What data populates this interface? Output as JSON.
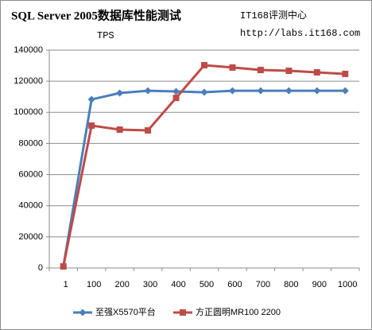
{
  "chart_data": {
    "type": "line",
    "title": "SQL Server 2005数据库性能测试",
    "y_label": "TPS",
    "annotations": [
      "IT168评测中心",
      "http://labs.it168.com"
    ],
    "categories": [
      "1",
      "100",
      "200",
      "300",
      "400",
      "500",
      "600",
      "700",
      "800",
      "900",
      "1000"
    ],
    "series": [
      {
        "name": "至强X5570平台",
        "color": "#4a7ebb",
        "marker": "diamond",
        "values": [
          1000,
          108300,
          112400,
          113900,
          113400,
          112900,
          113900,
          113900,
          113900,
          113900,
          113900
        ]
      },
      {
        "name": "方正圆明MR100 2200",
        "color": "#be4b48",
        "marker": "square",
        "values": [
          1000,
          91500,
          88900,
          88400,
          109300,
          130300,
          128800,
          127200,
          126700,
          125700,
          124700
        ]
      }
    ],
    "ylim": [
      0,
      140000
    ],
    "yticks": [
      0,
      20000,
      40000,
      60000,
      80000,
      100000,
      120000,
      140000
    ],
    "grid": true,
    "legend": "bottom"
  }
}
